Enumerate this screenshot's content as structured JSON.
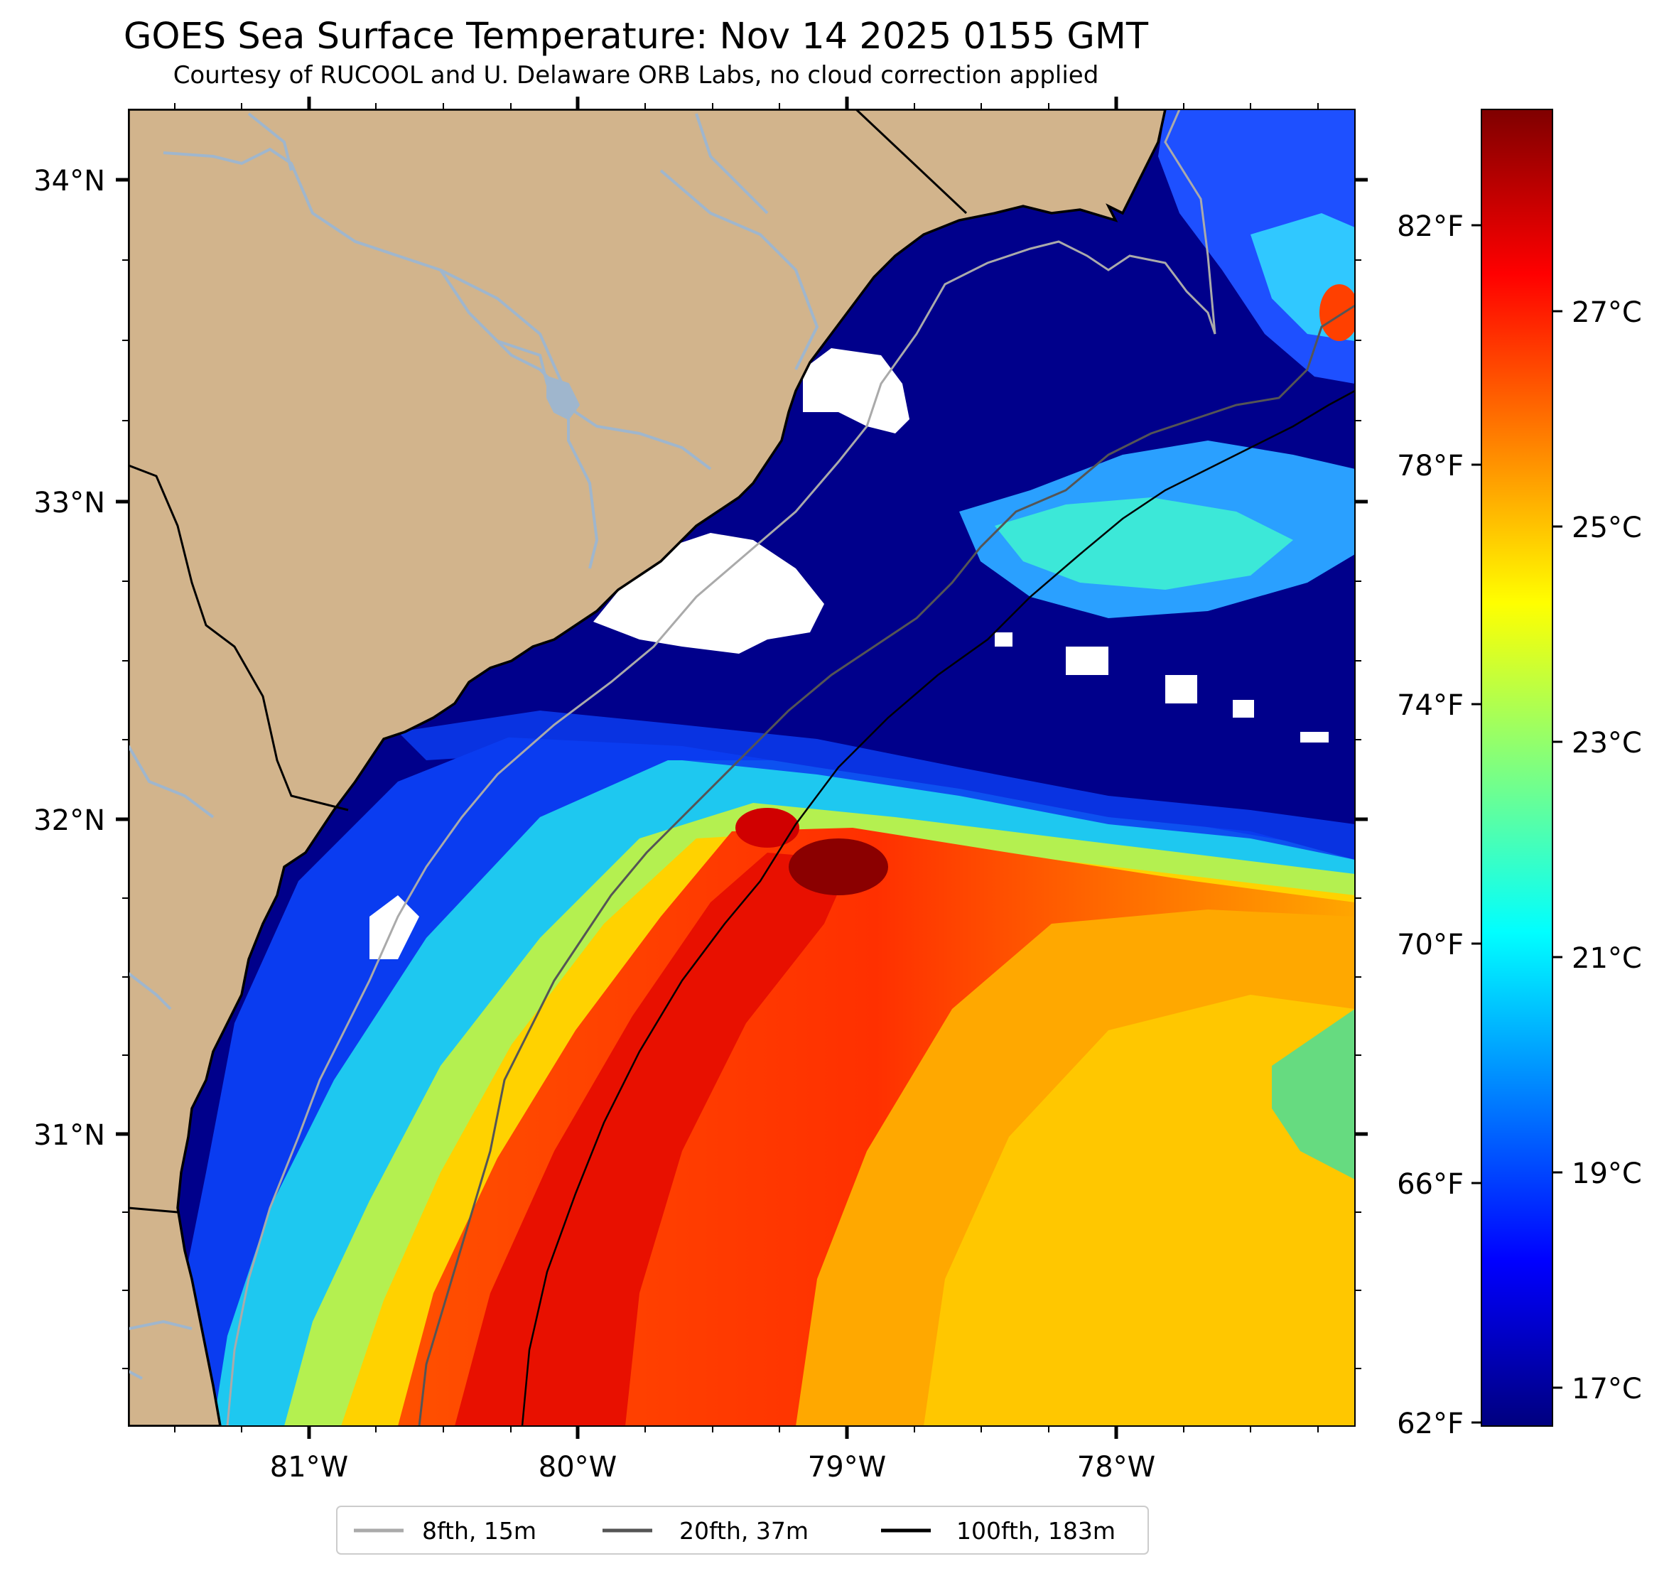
{
  "title": "GOES Sea Surface Temperature: Nov 14 2025 0155 GMT",
  "subtitle": "Courtesy of RUCOOL and U. Delaware ORB Labs, no cloud correction applied",
  "map": {
    "lat_ticks": [
      "34°N",
      "33°N",
      "32°N",
      "31°N"
    ],
    "lon_ticks": [
      "81°W",
      "80°W",
      "79°W",
      "78°W"
    ]
  },
  "colorbar": {
    "fahrenheit_ticks": [
      "82°F",
      "78°F",
      "74°F",
      "70°F",
      "66°F",
      "62°F"
    ],
    "celsius_ticks": [
      "27°C",
      "25°C",
      "23°C",
      "21°C",
      "19°C",
      "17°C"
    ],
    "colormap": "jet",
    "colors": [
      "#00007f",
      "#0000ff",
      "#007fff",
      "#00ffff",
      "#7fff7f",
      "#ffff00",
      "#ff7f00",
      "#ff0000",
      "#7f0000"
    ]
  },
  "legend": [
    {
      "label": "8fth, 15m",
      "color": "#aaaaaa"
    },
    {
      "label": "20fth, 37m",
      "color": "#555555"
    },
    {
      "label": "100fth, 183m",
      "color": "#000000"
    }
  ],
  "colors": {
    "land": "#d2b48c",
    "water_cold": "#00008b",
    "river": "#9fb6cd",
    "cloud": "#ffffff"
  }
}
